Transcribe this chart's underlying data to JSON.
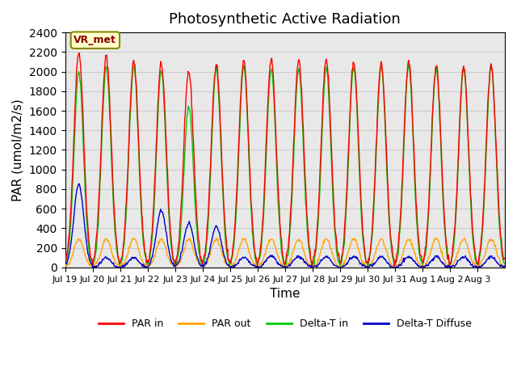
{
  "title": "Photosynthetic Active Radiation",
  "ylabel": "PAR (umol/m2/s)",
  "xlabel": "Time",
  "annotation": "VR_met",
  "ylim": [
    0,
    2400
  ],
  "yticks": [
    0,
    200,
    400,
    600,
    800,
    1000,
    1200,
    1400,
    1600,
    1800,
    2000,
    2200,
    2400
  ],
  "xtick_labels": [
    "Jul 19",
    "Jul 20",
    "Jul 21",
    "Jul 22",
    "Jul 23",
    "Jul 24",
    "Jul 25",
    "Jul 26",
    "Jul 27",
    "Jul 28",
    "Jul 29",
    "Jul 30",
    "Jul 31",
    "Aug 1",
    "Aug 2",
    "Aug 3"
  ],
  "colors": {
    "PAR_in": "#ff0000",
    "PAR_out": "#ffa500",
    "Delta_T_in": "#00cc00",
    "Delta_T_Diffuse": "#0000cc"
  },
  "legend_labels": [
    "PAR in",
    "PAR out",
    "Delta-T in",
    "Delta-T Diffuse"
  ],
  "background_color": "#e8e8e8",
  "title_fontsize": 13,
  "axis_fontsize": 11,
  "n_days": 16,
  "par_in_peaks": [
    2200,
    2150,
    2100,
    2080,
    2000,
    2080,
    2100,
    2120,
    2120,
    2130,
    2100,
    2080,
    2100,
    2060,
    2050,
    2070
  ],
  "delta_t_in_peaks": [
    2000,
    2040,
    2050,
    2000,
    1650,
    2030,
    2050,
    2020,
    2020,
    2030,
    2050,
    2050,
    2060,
    2030,
    2030,
    2050
  ],
  "delta_t_diffuse_peaks": [
    850,
    100,
    100,
    580,
    450,
    420,
    100,
    120,
    110,
    110,
    110,
    110,
    110,
    110,
    110,
    110
  ],
  "par_out_peak": 290
}
